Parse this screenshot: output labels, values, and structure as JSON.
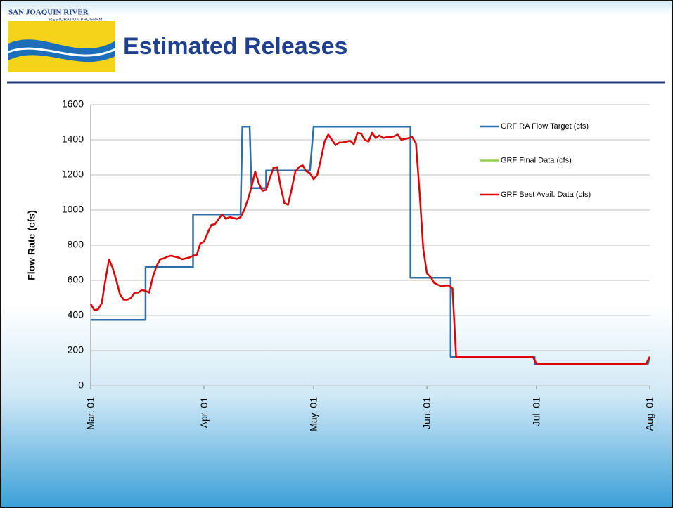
{
  "logo": {
    "title": "SAN JOAQUIN RIVER",
    "subtitle": "RESTORATION PROGRAM"
  },
  "chart_data": {
    "type": "line",
    "title": "Estimated Releases",
    "y_label": "Flow Rate (cfs)",
    "xlim": [
      0,
      153
    ],
    "xticks": [
      {
        "value": 0,
        "label": "Mar. 01"
      },
      {
        "value": 31,
        "label": "Apr. 01"
      },
      {
        "value": 61,
        "label": "May. 01"
      },
      {
        "value": 92,
        "label": "Jun. 01"
      },
      {
        "value": 122,
        "label": "Jul. 01"
      },
      {
        "value": 153,
        "label": "Aug. 01"
      }
    ],
    "ylim": [
      0,
      1600
    ],
    "yticks": [
      0,
      200,
      400,
      600,
      800,
      1000,
      1200,
      1400,
      1600
    ],
    "grid": true,
    "series": [
      {
        "name": "GRF RA Flow Target (cfs)",
        "color": "#2a6fb0",
        "x": [
          0,
          15,
          15,
          28,
          28,
          41,
          41.5,
          42,
          43.5,
          44,
          48,
          48,
          60,
          61,
          87.5,
          87.5,
          98.5,
          98.5,
          121.5,
          121.5,
          152.5,
          153
        ],
        "values": [
          375,
          375,
          675,
          675,
          975,
          975,
          1475,
          1475,
          1475,
          1125,
          1125,
          1225,
          1225,
          1475,
          1475,
          615,
          615,
          165,
          165,
          125,
          125,
          165
        ]
      },
      {
        "name": "GRF Final Data (cfs)",
        "color": "#92d050",
        "x": [],
        "values": []
      },
      {
        "name": "GRF Best Avail. Data (cfs)",
        "color": "#e00000",
        "x": [
          0,
          1,
          2,
          3,
          4,
          5,
          6,
          7,
          8,
          9,
          10,
          11,
          12,
          13,
          14,
          15,
          16,
          17,
          18,
          19,
          20,
          21,
          22,
          23,
          24,
          25,
          26,
          27,
          28,
          29,
          30,
          31,
          32,
          33,
          34,
          35,
          36,
          37,
          38,
          39,
          40,
          41,
          42,
          43,
          44,
          45,
          46,
          47,
          48,
          49,
          50,
          51,
          52,
          53,
          54,
          55,
          56,
          57,
          58,
          59,
          60,
          61,
          62,
          63,
          64,
          65,
          66,
          67,
          68,
          69,
          70,
          71,
          72,
          73,
          74,
          75,
          76,
          77,
          78,
          79,
          80,
          81,
          82,
          83,
          84,
          85,
          86,
          87,
          88,
          89,
          90,
          91,
          92,
          93,
          94,
          95,
          96,
          97,
          98,
          99,
          100,
          121,
          122,
          152,
          153
        ],
        "values": [
          465,
          430,
          435,
          470,
          600,
          720,
          670,
          600,
          520,
          490,
          490,
          500,
          530,
          530,
          545,
          540,
          530,
          620,
          680,
          720,
          725,
          735,
          740,
          735,
          730,
          720,
          725,
          730,
          740,
          745,
          810,
          820,
          870,
          915,
          920,
          950,
          975,
          950,
          960,
          955,
          950,
          960,
          1000,
          1060,
          1130,
          1220,
          1150,
          1110,
          1115,
          1180,
          1240,
          1245,
          1130,
          1040,
          1030,
          1120,
          1220,
          1245,
          1255,
          1220,
          1210,
          1175,
          1200,
          1290,
          1390,
          1430,
          1400,
          1370,
          1385,
          1385,
          1390,
          1395,
          1375,
          1440,
          1435,
          1400,
          1390,
          1440,
          1410,
          1425,
          1410,
          1415,
          1415,
          1420,
          1430,
          1400,
          1405,
          1410,
          1415,
          1380,
          1100,
          780,
          640,
          620,
          585,
          575,
          565,
          570,
          570,
          555,
          165,
          165,
          125,
          125,
          165
        ]
      }
    ]
  }
}
